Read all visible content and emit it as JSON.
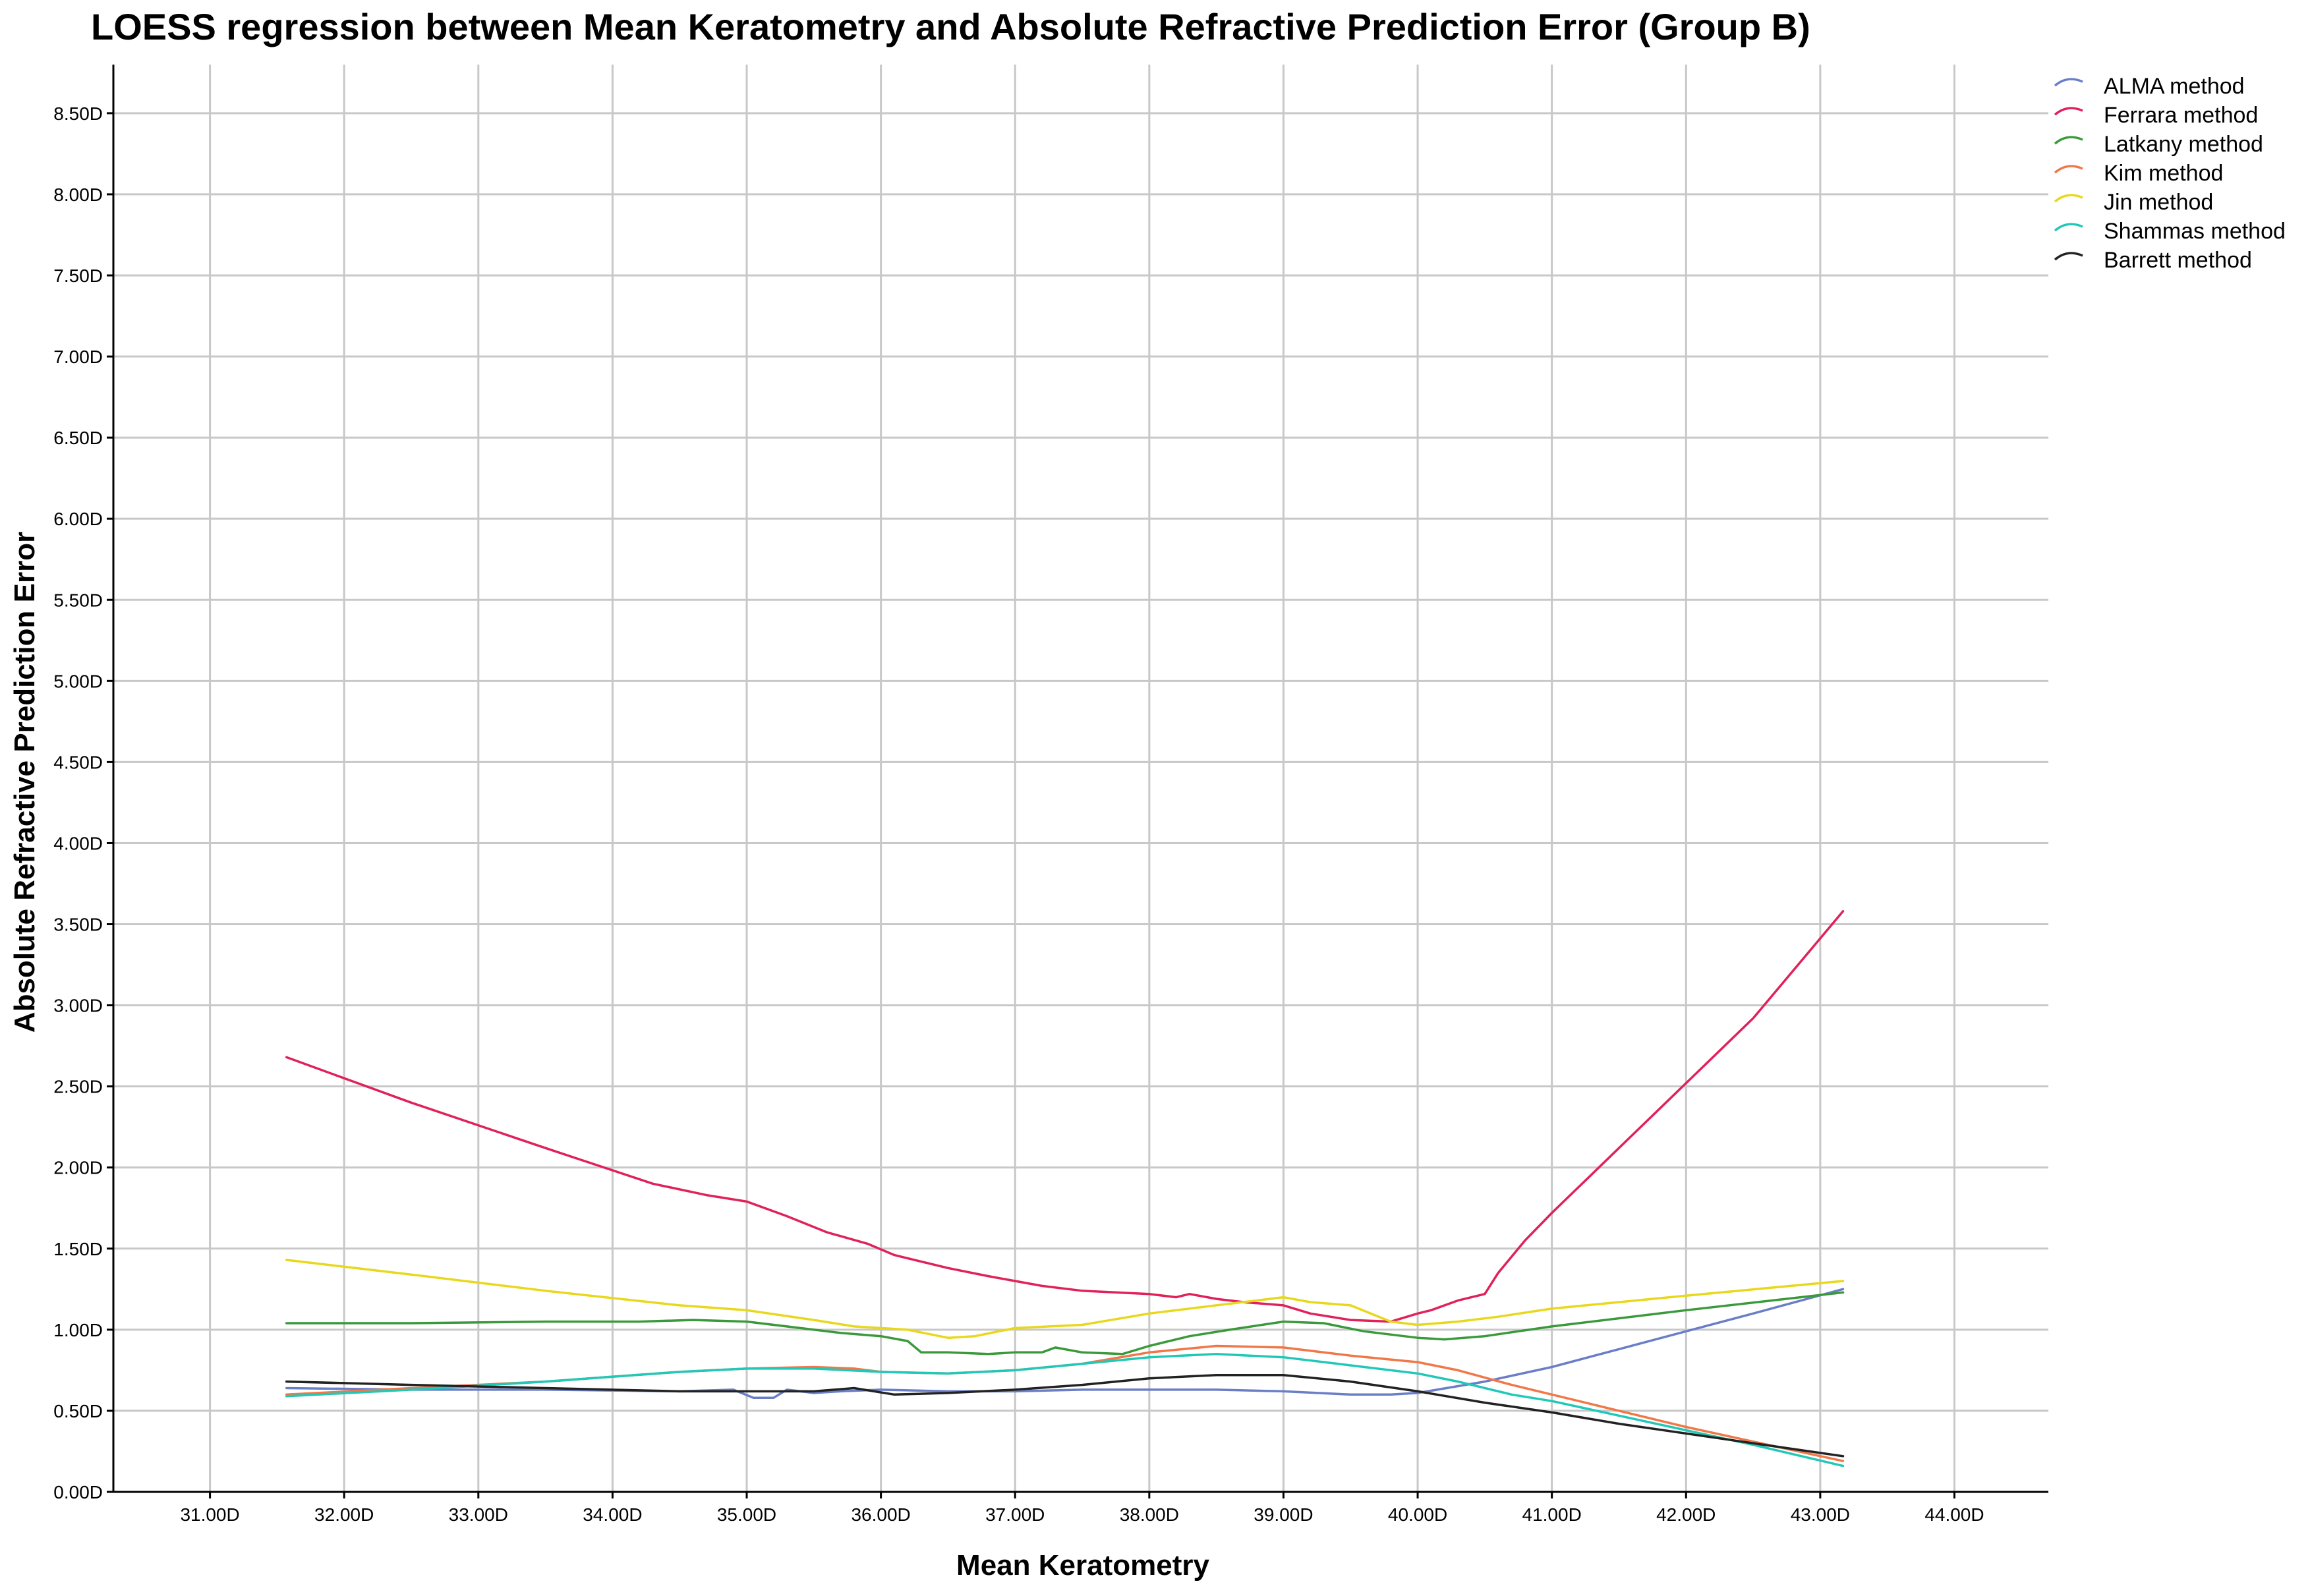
{
  "chart_data": {
    "type": "line",
    "title": "LOESS regression between Mean Keratometry and Absolute Refractive Prediction Error (Group B)",
    "xlabel": "Mean Keratometry",
    "ylabel": "Absolute Refractive Prediction Error",
    "xlim": [
      30.28,
      44.7
    ],
    "ylim": [
      0,
      8.8
    ],
    "x_ticks": [
      31,
      32,
      33,
      34,
      35,
      36,
      37,
      38,
      39,
      40,
      41,
      42,
      43,
      44
    ],
    "x_tick_labels": [
      "31.00D",
      "32.00D",
      "33.00D",
      "34.00D",
      "35.00D",
      "36.00D",
      "37.00D",
      "38.00D",
      "39.00D",
      "40.00D",
      "41.00D",
      "42.00D",
      "43.00D",
      "44.00D"
    ],
    "y_ticks": [
      0,
      0.5,
      1,
      1.5,
      2,
      2.5,
      3,
      3.5,
      4,
      4.5,
      5,
      5.5,
      6,
      6.5,
      7,
      7.5,
      8,
      8.5
    ],
    "y_tick_labels": [
      "0.00D",
      "0.50D",
      "1.00D",
      "1.50D",
      "2.00D",
      "2.50D",
      "3.00D",
      "3.50D",
      "4.00D",
      "4.50D",
      "5.00D",
      "5.50D",
      "6.00D",
      "6.50D",
      "7.00D",
      "7.50D",
      "8.00D",
      "8.50D"
    ],
    "grid": true,
    "legend_position": "top-right",
    "series": [
      {
        "name": "ALMA method",
        "color": "#6a7ec8",
        "points": [
          [
            31.57,
            0.64
          ],
          [
            32.5,
            0.63
          ],
          [
            33.5,
            0.63
          ],
          [
            34.5,
            0.62
          ],
          [
            34.9,
            0.63
          ],
          [
            35.05,
            0.58
          ],
          [
            35.2,
            0.58
          ],
          [
            35.3,
            0.63
          ],
          [
            35.5,
            0.61
          ],
          [
            35.7,
            0.62
          ],
          [
            36.0,
            0.63
          ],
          [
            36.5,
            0.62
          ],
          [
            37.0,
            0.62
          ],
          [
            37.5,
            0.63
          ],
          [
            38.0,
            0.63
          ],
          [
            38.5,
            0.63
          ],
          [
            39.0,
            0.62
          ],
          [
            39.5,
            0.6
          ],
          [
            39.8,
            0.6
          ],
          [
            40.0,
            0.61
          ],
          [
            40.5,
            0.68
          ],
          [
            41.0,
            0.77
          ],
          [
            41.5,
            0.88
          ],
          [
            42.0,
            0.99
          ],
          [
            42.5,
            1.1
          ],
          [
            43.17,
            1.25
          ]
        ]
      },
      {
        "name": "Ferrara method",
        "color": "#e0215a",
        "points": [
          [
            31.57,
            2.68
          ],
          [
            32.5,
            2.4
          ],
          [
            33.5,
            2.12
          ],
          [
            34.3,
            1.9
          ],
          [
            34.7,
            1.83
          ],
          [
            35.0,
            1.79
          ],
          [
            35.3,
            1.7
          ],
          [
            35.6,
            1.6
          ],
          [
            35.9,
            1.53
          ],
          [
            36.1,
            1.46
          ],
          [
            36.5,
            1.38
          ],
          [
            36.8,
            1.33
          ],
          [
            37.2,
            1.27
          ],
          [
            37.5,
            1.24
          ],
          [
            38.0,
            1.22
          ],
          [
            38.2,
            1.2
          ],
          [
            38.3,
            1.22
          ],
          [
            38.5,
            1.19
          ],
          [
            38.7,
            1.17
          ],
          [
            39.0,
            1.15
          ],
          [
            39.2,
            1.1
          ],
          [
            39.5,
            1.06
          ],
          [
            39.8,
            1.05
          ],
          [
            40.0,
            1.1
          ],
          [
            40.1,
            1.12
          ],
          [
            40.3,
            1.18
          ],
          [
            40.5,
            1.22
          ],
          [
            40.6,
            1.35
          ],
          [
            40.8,
            1.55
          ],
          [
            41.0,
            1.72
          ],
          [
            41.2,
            1.88
          ],
          [
            41.6,
            2.2
          ],
          [
            42.0,
            2.52
          ],
          [
            42.5,
            2.92
          ],
          [
            43.17,
            3.58
          ]
        ]
      },
      {
        "name": "Latkany method",
        "color": "#3a9a3a",
        "points": [
          [
            31.57,
            1.04
          ],
          [
            32.5,
            1.04
          ],
          [
            33.5,
            1.05
          ],
          [
            34.2,
            1.05
          ],
          [
            34.6,
            1.06
          ],
          [
            35.0,
            1.05
          ],
          [
            35.4,
            1.01
          ],
          [
            35.7,
            0.98
          ],
          [
            36.0,
            0.96
          ],
          [
            36.2,
            0.93
          ],
          [
            36.3,
            0.86
          ],
          [
            36.5,
            0.86
          ],
          [
            36.8,
            0.85
          ],
          [
            37.0,
            0.86
          ],
          [
            37.2,
            0.86
          ],
          [
            37.3,
            0.89
          ],
          [
            37.5,
            0.86
          ],
          [
            37.8,
            0.85
          ],
          [
            38.0,
            0.9
          ],
          [
            38.3,
            0.96
          ],
          [
            38.6,
            1.0
          ],
          [
            39.0,
            1.05
          ],
          [
            39.3,
            1.04
          ],
          [
            39.6,
            0.99
          ],
          [
            40.0,
            0.95
          ],
          [
            40.2,
            0.94
          ],
          [
            40.5,
            0.96
          ],
          [
            41.0,
            1.02
          ],
          [
            42.0,
            1.12
          ],
          [
            43.17,
            1.23
          ]
        ]
      },
      {
        "name": "Kim method",
        "color": "#f07848",
        "points": [
          [
            31.57,
            0.6
          ],
          [
            32.5,
            0.64
          ],
          [
            33.5,
            0.68
          ],
          [
            34.5,
            0.74
          ],
          [
            35.0,
            0.76
          ],
          [
            35.5,
            0.77
          ],
          [
            35.8,
            0.76
          ],
          [
            36.0,
            0.74
          ],
          [
            36.5,
            0.73
          ],
          [
            37.0,
            0.75
          ],
          [
            37.5,
            0.79
          ],
          [
            38.0,
            0.86
          ],
          [
            38.5,
            0.9
          ],
          [
            39.0,
            0.89
          ],
          [
            39.5,
            0.84
          ],
          [
            40.0,
            0.8
          ],
          [
            40.3,
            0.75
          ],
          [
            40.7,
            0.66
          ],
          [
            41.0,
            0.6
          ],
          [
            41.5,
            0.5
          ],
          [
            42.0,
            0.4
          ],
          [
            42.5,
            0.31
          ],
          [
            43.17,
            0.19
          ]
        ]
      },
      {
        "name": "Jin method",
        "color": "#e8d81c",
        "points": [
          [
            31.57,
            1.43
          ],
          [
            32.5,
            1.34
          ],
          [
            33.5,
            1.24
          ],
          [
            34.5,
            1.15
          ],
          [
            35.0,
            1.12
          ],
          [
            35.5,
            1.06
          ],
          [
            35.8,
            1.02
          ],
          [
            36.2,
            1.0
          ],
          [
            36.5,
            0.95
          ],
          [
            36.7,
            0.96
          ],
          [
            37.0,
            1.01
          ],
          [
            37.5,
            1.03
          ],
          [
            38.0,
            1.1
          ],
          [
            38.5,
            1.15
          ],
          [
            39.0,
            1.2
          ],
          [
            39.2,
            1.17
          ],
          [
            39.5,
            1.15
          ],
          [
            39.8,
            1.05
          ],
          [
            40.0,
            1.03
          ],
          [
            40.3,
            1.05
          ],
          [
            40.6,
            1.08
          ],
          [
            41.0,
            1.13
          ],
          [
            42.0,
            1.21
          ],
          [
            43.17,
            1.3
          ]
        ]
      },
      {
        "name": "Shammas method",
        "color": "#20c8b8",
        "points": [
          [
            31.57,
            0.59
          ],
          [
            32.5,
            0.63
          ],
          [
            33.5,
            0.68
          ],
          [
            34.5,
            0.74
          ],
          [
            35.0,
            0.76
          ],
          [
            35.5,
            0.76
          ],
          [
            36.0,
            0.74
          ],
          [
            36.5,
            0.73
          ],
          [
            37.0,
            0.75
          ],
          [
            37.5,
            0.79
          ],
          [
            38.0,
            0.83
          ],
          [
            38.5,
            0.85
          ],
          [
            39.0,
            0.83
          ],
          [
            39.5,
            0.78
          ],
          [
            40.0,
            0.73
          ],
          [
            40.3,
            0.68
          ],
          [
            40.7,
            0.6
          ],
          [
            41.0,
            0.56
          ],
          [
            41.5,
            0.47
          ],
          [
            42.0,
            0.38
          ],
          [
            42.5,
            0.29
          ],
          [
            43.17,
            0.16
          ]
        ]
      },
      {
        "name": "Barrett method",
        "color": "#222222",
        "points": [
          [
            31.57,
            0.68
          ],
          [
            32.5,
            0.66
          ],
          [
            33.5,
            0.64
          ],
          [
            34.5,
            0.62
          ],
          [
            35.0,
            0.62
          ],
          [
            35.5,
            0.62
          ],
          [
            35.8,
            0.64
          ],
          [
            36.1,
            0.6
          ],
          [
            36.5,
            0.61
          ],
          [
            37.0,
            0.63
          ],
          [
            37.5,
            0.66
          ],
          [
            38.0,
            0.7
          ],
          [
            38.5,
            0.72
          ],
          [
            39.0,
            0.72
          ],
          [
            39.5,
            0.68
          ],
          [
            40.0,
            0.62
          ],
          [
            40.5,
            0.55
          ],
          [
            41.0,
            0.49
          ],
          [
            41.5,
            0.42
          ],
          [
            42.0,
            0.36
          ],
          [
            42.5,
            0.3
          ],
          [
            43.17,
            0.22
          ]
        ]
      }
    ]
  }
}
